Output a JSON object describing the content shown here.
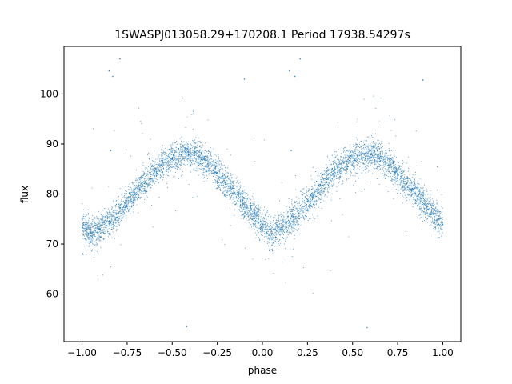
{
  "chart_data": {
    "type": "scatter",
    "title": "1SWASPJ013058.29+170208.1 Period 17938.54297s",
    "xlabel": "phase",
    "ylabel": "flux",
    "xlim": [
      -1.1,
      1.1
    ],
    "ylim": [
      50.5,
      109.5
    ],
    "x_ticks": [
      -1.0,
      -0.75,
      -0.5,
      -0.25,
      0.0,
      0.25,
      0.5,
      0.75,
      1.0
    ],
    "x_tick_labels": [
      "−1.00",
      "−0.75",
      "−0.50",
      "−0.25",
      "0.00",
      "0.25",
      "0.50",
      "0.75",
      "1.00"
    ],
    "y_ticks": [
      60,
      70,
      80,
      90,
      100
    ],
    "y_tick_labels": [
      "60",
      "70",
      "80",
      "90",
      "100"
    ],
    "grid": false,
    "point_color": "#1f77b4",
    "model": {
      "description_points": [
        [
          0.05,
          72.0
        ],
        [
          0.12,
          73.5
        ],
        [
          0.2,
          76.0
        ],
        [
          0.3,
          80.5
        ],
        [
          0.4,
          84.5
        ],
        [
          0.5,
          87.0
        ],
        [
          0.55,
          87.8
        ],
        [
          0.62,
          88.0
        ],
        [
          0.7,
          86.0
        ],
        [
          0.8,
          82.0
        ],
        [
          0.9,
          78.0
        ],
        [
          1.0,
          74.0
        ],
        [
          1.05,
          72.0
        ]
      ],
      "x_range": [
        -1.0,
        1.0
      ],
      "period_in_phase": 1.0
    },
    "series": [
      {
        "points_sample": [
          [
            -0.98,
            73.1
          ],
          [
            -0.95,
            72.4
          ],
          [
            -0.9,
            72.8
          ],
          [
            -0.85,
            74.0
          ],
          [
            -0.8,
            75.2
          ],
          [
            -0.75,
            77.5
          ],
          [
            -0.7,
            80.0
          ],
          [
            -0.65,
            82.4
          ],
          [
            -0.6,
            84.6
          ],
          [
            -0.55,
            86.2
          ],
          [
            -0.5,
            87.1
          ],
          [
            -0.45,
            87.8
          ],
          [
            -0.4,
            87.5
          ],
          [
            -0.35,
            86.4
          ],
          [
            -0.3,
            84.8
          ],
          [
            -0.25,
            82.6
          ],
          [
            -0.2,
            80.3
          ],
          [
            -0.15,
            77.9
          ],
          [
            -0.1,
            75.6
          ],
          [
            -0.05,
            73.6
          ],
          [
            0.0,
            72.6
          ],
          [
            0.05,
            72.1
          ],
          [
            0.1,
            72.9
          ],
          [
            0.15,
            74.3
          ],
          [
            0.2,
            76.2
          ],
          [
            0.25,
            78.6
          ],
          [
            0.3,
            80.9
          ],
          [
            0.35,
            83.0
          ],
          [
            0.4,
            84.8
          ],
          [
            0.45,
            86.3
          ],
          [
            0.5,
            87.2
          ],
          [
            0.55,
            87.8
          ],
          [
            0.6,
            87.9
          ],
          [
            0.65,
            87.0
          ],
          [
            0.7,
            85.8
          ],
          [
            0.75,
            83.9
          ],
          [
            0.8,
            82.0
          ],
          [
            0.85,
            80.1
          ],
          [
            0.9,
            78.0
          ],
          [
            0.95,
            75.9
          ],
          [
            1.0,
            73.9
          ],
          [
            -0.85,
            104.6
          ],
          [
            -0.83,
            103.5
          ],
          [
            -0.79,
            107.0
          ],
          [
            0.15,
            104.6
          ],
          [
            0.18,
            103.5
          ],
          [
            0.21,
            107.0
          ],
          [
            -0.1,
            103.0
          ],
          [
            0.89,
            102.8
          ],
          [
            -0.84,
            88.7
          ],
          [
            0.16,
            88.7
          ],
          [
            -0.42,
            53.5
          ],
          [
            0.58,
            53.3
          ]
        ]
      }
    ]
  }
}
